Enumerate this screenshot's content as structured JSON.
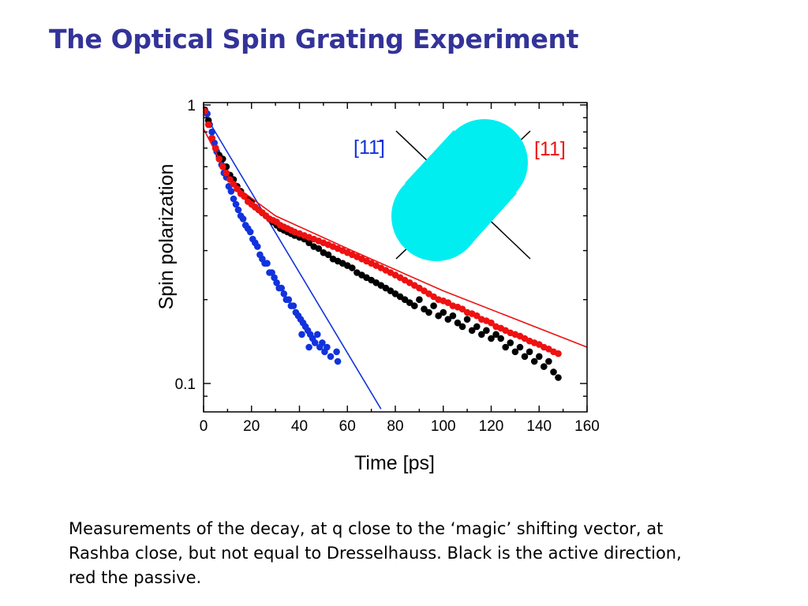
{
  "slide": {
    "title": "The Optical Spin Grating Experiment",
    "caption": "Measurements of the decay, at q close to the ‘magic’ shifting vector, at Rashba close, but not equal to Dresselhauss. Black is the active direction, red the passive."
  },
  "chart_data": {
    "type": "scatter",
    "xlabel": "Time [ps]",
    "ylabel": "Spin polarization",
    "xlim": [
      0,
      160
    ],
    "ylim": [
      0.08,
      1.0
    ],
    "y_scale": "log",
    "x_ticks": [
      0,
      20,
      40,
      60,
      80,
      100,
      120,
      140,
      160
    ],
    "x_tick_labels": [
      "0",
      "20",
      "40",
      "60",
      "80",
      "100",
      "120",
      "140",
      "160"
    ],
    "y_ticks": [
      1,
      0.1
    ],
    "y_tick_labels": [
      "1",
      "0.1"
    ],
    "grid": false,
    "colors": {
      "black": "#000000",
      "red": "#ee1111",
      "blue": "#1133dd",
      "inset_shape": "#00eef0"
    },
    "inset": {
      "label_left": "[11̄]",
      "label_left_color": "#1133dd",
      "label_right": "[11]",
      "label_right_color": "#ee1111"
    },
    "series": [
      {
        "color": "#1133dd",
        "points": [
          [
            0.5,
            0.96
          ],
          [
            1.5,
            0.93
          ],
          [
            2.5,
            0.85
          ],
          [
            3.5,
            0.8
          ],
          [
            4.5,
            0.73
          ],
          [
            5.5,
            0.68
          ],
          [
            6.5,
            0.65
          ],
          [
            7.5,
            0.61
          ],
          [
            8.5,
            0.57
          ],
          [
            9.5,
            0.55
          ],
          [
            10.5,
            0.51
          ],
          [
            11.5,
            0.49
          ],
          [
            12.5,
            0.46
          ],
          [
            13.5,
            0.44
          ],
          [
            14.5,
            0.42
          ],
          [
            15.5,
            0.4
          ],
          [
            16.5,
            0.39
          ],
          [
            17.5,
            0.37
          ],
          [
            18.5,
            0.36
          ],
          [
            19.5,
            0.35
          ],
          [
            20.5,
            0.33
          ],
          [
            21.5,
            0.32
          ],
          [
            22.5,
            0.31
          ],
          [
            23.5,
            0.29
          ],
          [
            24.5,
            0.28
          ],
          [
            25.5,
            0.27
          ],
          [
            26.5,
            0.27
          ],
          [
            27.5,
            0.25
          ],
          [
            28.5,
            0.25
          ],
          [
            29.5,
            0.24
          ],
          [
            30.5,
            0.23
          ],
          [
            31.5,
            0.22
          ],
          [
            32.5,
            0.22
          ],
          [
            33.5,
            0.21
          ],
          [
            34.5,
            0.2
          ],
          [
            35.5,
            0.2
          ],
          [
            36.5,
            0.19
          ],
          [
            37.5,
            0.19
          ],
          [
            38.5,
            0.18
          ],
          [
            39.5,
            0.175
          ],
          [
            40.5,
            0.17
          ],
          [
            41.5,
            0.165
          ],
          [
            42.5,
            0.16
          ],
          [
            43.5,
            0.155
          ],
          [
            44.5,
            0.15
          ],
          [
            45.5,
            0.145
          ],
          [
            46.5,
            0.14
          ],
          [
            47.5,
            0.15
          ],
          [
            48.5,
            0.135
          ],
          [
            49.5,
            0.14
          ],
          [
            50.5,
            0.13
          ],
          [
            51.5,
            0.135
          ],
          [
            53.0,
            0.125
          ],
          [
            55.5,
            0.13
          ],
          [
            56.0,
            0.12
          ],
          [
            41.0,
            0.15
          ],
          [
            44.0,
            0.135
          ]
        ],
        "fit": [
          [
            0,
            0.94
          ],
          [
            74,
            0.081
          ]
        ]
      },
      {
        "color": "#000000",
        "points": [
          [
            0.5,
            0.96
          ],
          [
            2,
            0.88
          ],
          [
            3.5,
            0.76
          ],
          [
            5,
            0.7
          ],
          [
            6.5,
            0.66
          ],
          [
            8,
            0.64
          ],
          [
            9.5,
            0.6
          ],
          [
            11,
            0.56
          ],
          [
            12.5,
            0.54
          ],
          [
            14,
            0.51
          ],
          [
            15.5,
            0.49
          ],
          [
            17,
            0.47
          ],
          [
            18.5,
            0.46
          ],
          [
            20,
            0.45
          ],
          [
            21.5,
            0.43
          ],
          [
            23,
            0.42
          ],
          [
            24.5,
            0.41
          ],
          [
            26,
            0.4
          ],
          [
            27.5,
            0.39
          ],
          [
            29,
            0.38
          ],
          [
            30.5,
            0.37
          ],
          [
            32,
            0.36
          ],
          [
            33.5,
            0.355
          ],
          [
            35,
            0.35
          ],
          [
            36.5,
            0.345
          ],
          [
            38,
            0.34
          ],
          [
            40,
            0.335
          ],
          [
            42,
            0.33
          ],
          [
            44,
            0.32
          ],
          [
            46,
            0.31
          ],
          [
            48,
            0.305
          ],
          [
            50,
            0.295
          ],
          [
            52,
            0.29
          ],
          [
            54,
            0.28
          ],
          [
            56,
            0.275
          ],
          [
            58,
            0.27
          ],
          [
            60,
            0.265
          ],
          [
            62,
            0.26
          ],
          [
            64,
            0.25
          ],
          [
            66,
            0.245
          ],
          [
            68,
            0.24
          ],
          [
            70,
            0.235
          ],
          [
            72,
            0.23
          ],
          [
            74,
            0.225
          ],
          [
            76,
            0.22
          ],
          [
            78,
            0.215
          ],
          [
            80,
            0.21
          ],
          [
            82,
            0.205
          ],
          [
            84,
            0.2
          ],
          [
            86,
            0.195
          ],
          [
            88,
            0.19
          ],
          [
            90,
            0.2
          ],
          [
            92,
            0.185
          ],
          [
            94,
            0.18
          ],
          [
            96,
            0.19
          ],
          [
            98,
            0.175
          ],
          [
            100,
            0.18
          ],
          [
            102,
            0.17
          ],
          [
            104,
            0.175
          ],
          [
            106,
            0.165
          ],
          [
            108,
            0.16
          ],
          [
            110,
            0.17
          ],
          [
            112,
            0.155
          ],
          [
            114,
            0.16
          ],
          [
            116,
            0.15
          ],
          [
            118,
            0.155
          ],
          [
            120,
            0.145
          ],
          [
            122,
            0.15
          ],
          [
            124,
            0.145
          ],
          [
            126,
            0.135
          ],
          [
            128,
            0.14
          ],
          [
            130,
            0.13
          ],
          [
            132,
            0.135
          ],
          [
            134,
            0.125
          ],
          [
            136,
            0.13
          ],
          [
            138,
            0.12
          ],
          [
            140,
            0.125
          ],
          [
            142,
            0.115
          ],
          [
            144,
            0.12
          ],
          [
            146,
            0.11
          ],
          [
            148,
            0.105
          ]
        ]
      },
      {
        "color": "#ee1111",
        "points": [
          [
            0.5,
            0.95
          ],
          [
            2,
            0.85
          ],
          [
            3.5,
            0.76
          ],
          [
            5,
            0.7
          ],
          [
            6.5,
            0.64
          ],
          [
            8,
            0.6
          ],
          [
            9.5,
            0.57
          ],
          [
            11,
            0.54
          ],
          [
            12.5,
            0.52
          ],
          [
            14,
            0.5
          ],
          [
            15.5,
            0.48
          ],
          [
            17,
            0.47
          ],
          [
            18.5,
            0.45
          ],
          [
            20,
            0.44
          ],
          [
            21.5,
            0.43
          ],
          [
            23,
            0.42
          ],
          [
            24.5,
            0.41
          ],
          [
            26,
            0.4
          ],
          [
            27.5,
            0.39
          ],
          [
            29,
            0.385
          ],
          [
            30.5,
            0.38
          ],
          [
            32,
            0.37
          ],
          [
            33.5,
            0.365
          ],
          [
            35,
            0.36
          ],
          [
            36.5,
            0.355
          ],
          [
            38,
            0.35
          ],
          [
            40,
            0.345
          ],
          [
            42,
            0.34
          ],
          [
            44,
            0.335
          ],
          [
            46,
            0.33
          ],
          [
            48,
            0.325
          ],
          [
            50,
            0.32
          ],
          [
            52,
            0.315
          ],
          [
            54,
            0.31
          ],
          [
            56,
            0.305
          ],
          [
            58,
            0.3
          ],
          [
            60,
            0.295
          ],
          [
            62,
            0.29
          ],
          [
            64,
            0.285
          ],
          [
            66,
            0.28
          ],
          [
            68,
            0.275
          ],
          [
            70,
            0.27
          ],
          [
            72,
            0.265
          ],
          [
            74,
            0.26
          ],
          [
            76,
            0.255
          ],
          [
            78,
            0.25
          ],
          [
            80,
            0.245
          ],
          [
            82,
            0.24
          ],
          [
            84,
            0.235
          ],
          [
            86,
            0.23
          ],
          [
            88,
            0.225
          ],
          [
            90,
            0.22
          ],
          [
            92,
            0.215
          ],
          [
            94,
            0.21
          ],
          [
            96,
            0.205
          ],
          [
            98,
            0.2
          ],
          [
            100,
            0.198
          ],
          [
            102,
            0.195
          ],
          [
            104,
            0.19
          ],
          [
            106,
            0.188
          ],
          [
            108,
            0.185
          ],
          [
            110,
            0.18
          ],
          [
            112,
            0.178
          ],
          [
            114,
            0.175
          ],
          [
            116,
            0.17
          ],
          [
            118,
            0.168
          ],
          [
            120,
            0.165
          ],
          [
            122,
            0.16
          ],
          [
            124,
            0.158
          ],
          [
            126,
            0.155
          ],
          [
            128,
            0.152
          ],
          [
            130,
            0.15
          ],
          [
            132,
            0.148
          ],
          [
            134,
            0.145
          ],
          [
            136,
            0.142
          ],
          [
            138,
            0.14
          ],
          [
            140,
            0.138
          ],
          [
            142,
            0.135
          ],
          [
            144,
            0.133
          ],
          [
            146,
            0.13
          ],
          [
            148,
            0.128
          ]
        ],
        "fit": [
          [
            0,
            0.82
          ],
          [
            12,
            0.52
          ],
          [
            30,
            0.4
          ],
          [
            60,
            0.305
          ],
          [
            100,
            0.215
          ],
          [
            160,
            0.135
          ]
        ]
      }
    ]
  }
}
